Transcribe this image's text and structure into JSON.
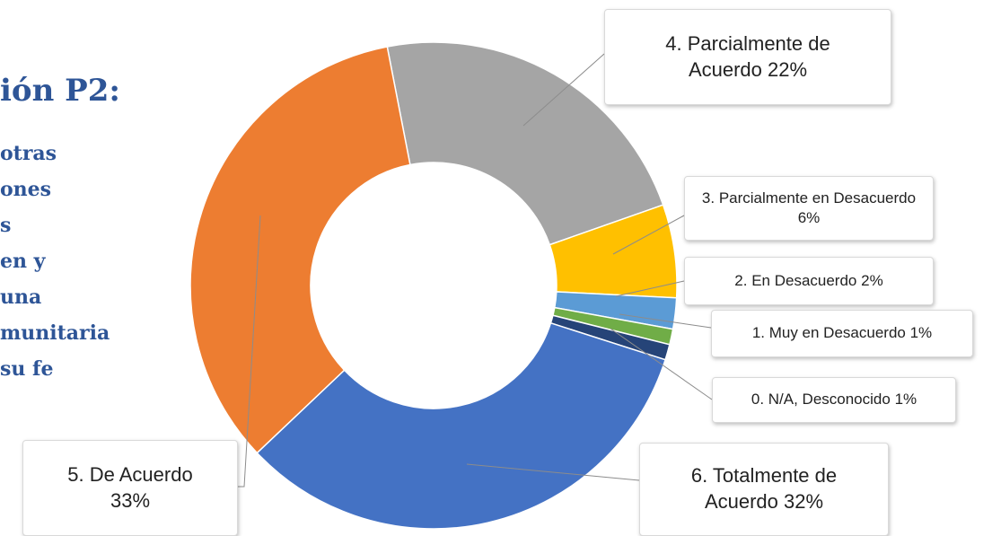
{
  "chart_data": {
    "type": "donut",
    "title": "ión P2:",
    "subtitle": [
      "otras",
      "ones",
      "s",
      "en y",
      "una",
      "munitaria",
      "su fe"
    ],
    "categories": [
      "4. Parcialmente de Acuerdo",
      "3. Parcialmente en Desacuerdo",
      "2. En Desacuerdo",
      "1. Muy en Desacuerdo",
      "0. N/A, Desconocido",
      "6. Totalmente de Acuerdo",
      "5. De Acuerdo"
    ],
    "values": [
      22,
      6,
      2,
      1,
      1,
      32,
      33
    ],
    "value_labels": [
      "22%",
      "6%",
      "2%",
      "1%",
      "1%",
      "32%",
      "33%"
    ],
    "colors": [
      "#a5a5a5",
      "#ffc000",
      "#5b9bd5",
      "#70ad47",
      "#264478",
      "#4472c4",
      "#ed7d31"
    ]
  }
}
